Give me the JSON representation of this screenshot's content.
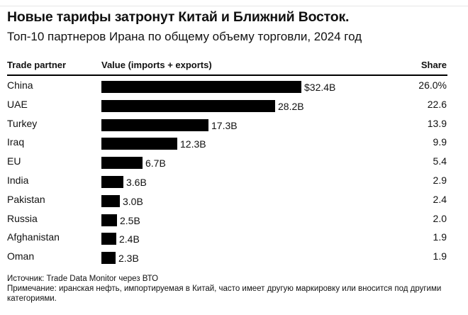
{
  "chart_data": {
    "type": "bar",
    "orientation": "horizontal",
    "title": "Новые тарифы затронут Китай и Ближний Восток.",
    "subtitle": "Топ-10 партнеров Ирана по общему объему торговли, 2024 год",
    "columns": [
      "Trade partner",
      "Value (imports + exports)",
      "Share"
    ],
    "categories": [
      "China",
      "UAE",
      "Turkey",
      "Iraq",
      "EU",
      "India",
      "Pakistan",
      "Russia",
      "Afghanistan",
      "Oman"
    ],
    "values": [
      32.4,
      28.2,
      17.3,
      12.3,
      6.7,
      3.6,
      3.0,
      2.5,
      2.4,
      2.3
    ],
    "value_labels": [
      "$32.4B",
      "28.2B",
      "17.3B",
      "12.3B",
      "6.7B",
      "3.6B",
      "3.0B",
      "2.5B",
      "2.4B",
      "2.3B"
    ],
    "shares": [
      "26.0%",
      "22.6",
      "13.9",
      "9.9",
      "5.4",
      "2.9",
      "2.4",
      "2.0",
      "1.9",
      "1.9"
    ],
    "bar_color": "#000000",
    "unit": "USD billions"
  },
  "footer": {
    "source": "Источник: Trade Data Monitor через ВТО",
    "note": "Примечание: иранская нефть, импортируемая в Китай, часто имеет другую маркировку или вносится под другими категориями."
  }
}
